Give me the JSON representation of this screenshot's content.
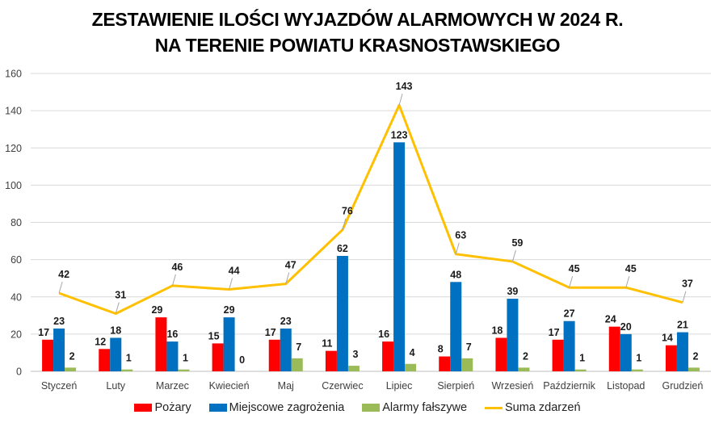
{
  "chart_data": {
    "type": "bar",
    "title_line1": "ZESTAWIENIE ILOŚCI WYJAZDÓW ALARMOWYCH W 2024 R.",
    "title_line2": "NA TERENIE POWIATU KRASNOSTAWSKIEGO",
    "categories": [
      "Styczeń",
      "Luty",
      "Marzec",
      "Kwiecień",
      "Maj",
      "Czerwiec",
      "Lipiec",
      "Sierpień",
      "Wrzesień",
      "Październik",
      "Listopad",
      "Grudzień"
    ],
    "ylim": [
      0,
      160
    ],
    "yticks": [
      0,
      20,
      40,
      60,
      80,
      100,
      120,
      140,
      160
    ],
    "grid": true,
    "legend_position": "bottom",
    "series": [
      {
        "name": "Pożary",
        "kind": "bar",
        "color": "#ff0000",
        "values": [
          17,
          12,
          29,
          15,
          17,
          11,
          16,
          8,
          18,
          17,
          24,
          14
        ]
      },
      {
        "name": "Miejscowe zagrożenia",
        "kind": "bar",
        "color": "#0070c0",
        "values": [
          23,
          18,
          16,
          29,
          23,
          62,
          123,
          48,
          39,
          27,
          20,
          21
        ]
      },
      {
        "name": "Alarmy fałszywe",
        "kind": "bar",
        "color": "#9bbb59",
        "values": [
          2,
          1,
          1,
          0,
          7,
          3,
          4,
          7,
          2,
          1,
          1,
          2
        ]
      },
      {
        "name": "Suma zdarzeń",
        "kind": "line",
        "color": "#ffc000",
        "values": [
          42,
          31,
          46,
          44,
          47,
          76,
          143,
          63,
          59,
          45,
          45,
          37
        ]
      }
    ]
  }
}
